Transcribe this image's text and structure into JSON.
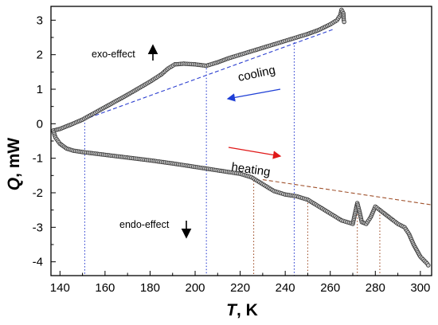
{
  "chart_data": {
    "type": "scatter",
    "xlabel": "T, K",
    "ylabel": "Q, mW",
    "xlim": [
      136,
      305
    ],
    "ylim": [
      -4.4,
      3.4
    ],
    "x_ticks": [
      140,
      160,
      180,
      200,
      220,
      240,
      260,
      280,
      300
    ],
    "y_ticks": [
      -4,
      -3,
      -2,
      -1,
      0,
      1,
      2,
      3
    ],
    "grid": false,
    "series": [
      {
        "role": "cooling-curve",
        "points": [
          [
            137,
            -0.2
          ],
          [
            140,
            -0.15
          ],
          [
            145,
            -0.02
          ],
          [
            150,
            0.12
          ],
          [
            155,
            0.3
          ],
          [
            160,
            0.48
          ],
          [
            165,
            0.66
          ],
          [
            170,
            0.84
          ],
          [
            175,
            1.03
          ],
          [
            180,
            1.22
          ],
          [
            185,
            1.43
          ],
          [
            188,
            1.6
          ],
          [
            191,
            1.72
          ],
          [
            195,
            1.74
          ],
          [
            200,
            1.72
          ],
          [
            205,
            1.68
          ],
          [
            210,
            1.78
          ],
          [
            215,
            1.9
          ],
          [
            220,
            2.0
          ],
          [
            225,
            2.1
          ],
          [
            230,
            2.2
          ],
          [
            235,
            2.3
          ],
          [
            240,
            2.4
          ],
          [
            245,
            2.5
          ],
          [
            250,
            2.6
          ],
          [
            255,
            2.72
          ],
          [
            260,
            2.88
          ],
          [
            263,
            3.0
          ],
          [
            264.5,
            3.15
          ],
          [
            265,
            3.3
          ],
          [
            265.8,
            3.2
          ],
          [
            266,
            3.0
          ],
          [
            266.3,
            2.9
          ]
        ]
      },
      {
        "role": "heating-curve",
        "points": [
          [
            137,
            -0.2
          ],
          [
            138,
            -0.4
          ],
          [
            140,
            -0.58
          ],
          [
            143,
            -0.72
          ],
          [
            146,
            -0.78
          ],
          [
            150,
            -0.82
          ],
          [
            160,
            -0.9
          ],
          [
            170,
            -0.98
          ],
          [
            180,
            -1.06
          ],
          [
            190,
            -1.15
          ],
          [
            200,
            -1.25
          ],
          [
            210,
            -1.35
          ],
          [
            220,
            -1.45
          ],
          [
            225,
            -1.55
          ],
          [
            230,
            -1.75
          ],
          [
            235,
            -1.95
          ],
          [
            240,
            -2.05
          ],
          [
            245,
            -2.1
          ],
          [
            250,
            -2.2
          ],
          [
            255,
            -2.4
          ],
          [
            260,
            -2.6
          ],
          [
            265,
            -2.8
          ],
          [
            270,
            -2.9
          ],
          [
            271,
            -2.6
          ],
          [
            272,
            -2.3
          ],
          [
            273,
            -2.55
          ],
          [
            274,
            -2.85
          ],
          [
            276,
            -2.9
          ],
          [
            278,
            -2.7
          ],
          [
            280,
            -2.4
          ],
          [
            282,
            -2.5
          ],
          [
            285,
            -2.65
          ],
          [
            288,
            -2.8
          ],
          [
            290,
            -2.9
          ],
          [
            293,
            -3.0
          ],
          [
            295,
            -3.2
          ],
          [
            297,
            -3.5
          ],
          [
            300,
            -3.85
          ],
          [
            303,
            -4.05
          ],
          [
            304,
            -4.15
          ]
        ]
      }
    ],
    "baselines": [
      {
        "color": "#2c3fd0",
        "from": [
          137,
          -0.2
        ],
        "to": [
          262,
          2.75
        ]
      },
      {
        "color": "#a0522d",
        "from": [
          230,
          -1.62
        ],
        "to": [
          305,
          -2.35
        ]
      },
      {
        "color": "#cc2222",
        "from": [
          146,
          -0.8
        ],
        "to": [
          224,
          -1.5
        ]
      }
    ],
    "markers": [
      {
        "x": 151,
        "y_top": 0.12,
        "color": "#2c3fd0"
      },
      {
        "x": 205,
        "y_top": 1.7,
        "color": "#2c3fd0"
      },
      {
        "x": 244,
        "y_top": 2.45,
        "color": "#2c3fd0"
      },
      {
        "x": 226,
        "y_top": -1.55,
        "color": "#a0522d"
      },
      {
        "x": 250,
        "y_top": -2.2,
        "color": "#a0522d"
      },
      {
        "x": 272,
        "y_top": -2.35,
        "color": "#a0522d"
      },
      {
        "x": 282,
        "y_top": -2.45,
        "color": "#a0522d"
      }
    ],
    "annotations": {
      "exo": "exo-effect",
      "endo": "endo-effect",
      "cooling": "cooling",
      "heating": "heating"
    },
    "colors": {
      "marker": "#3a3a3a",
      "cooling_arrow": "#1f3fd6",
      "heating_arrow": "#e01818"
    }
  }
}
